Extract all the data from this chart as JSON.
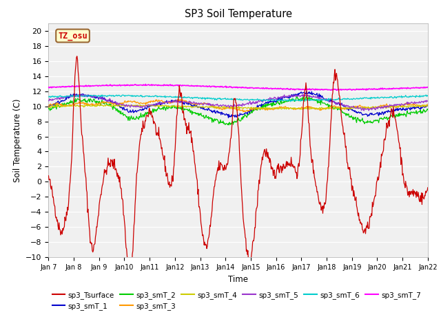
{
  "title": "SP3 Soil Temperature",
  "ylabel": "Soil Temperature (C)",
  "xlabel": "Time",
  "ylim": [
    -10,
    21
  ],
  "yticks": [
    -10,
    -8,
    -6,
    -4,
    -2,
    0,
    2,
    4,
    6,
    8,
    10,
    12,
    14,
    16,
    18,
    20
  ],
  "fig_bg": "#ffffff",
  "plot_bg": "#f0f0f0",
  "series_colors": {
    "sp3_Tsurface": "#cc0000",
    "sp3_smT_1": "#0000cc",
    "sp3_smT_2": "#00cc00",
    "sp3_smT_3": "#ff9900",
    "sp3_smT_4": "#cccc00",
    "sp3_smT_5": "#9933cc",
    "sp3_smT_6": "#00cccc",
    "sp3_smT_7": "#ff00ff"
  },
  "tz_label": "TZ_osu",
  "tz_bg": "#ffffcc",
  "tz_border": "#996633",
  "x_tick_labels": [
    "Jan 7",
    "Jan 8",
    "Jan 9",
    "Jan 10",
    "Jan 11",
    "Jan 12",
    "Jan 13",
    "Jan 14",
    "Jan 15",
    "Jan 16",
    "Jan 17",
    "Jan 18",
    "Jan 19",
    "Jan 20",
    "Jan 21",
    "Jan 22"
  ],
  "n_points": 720
}
